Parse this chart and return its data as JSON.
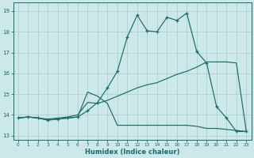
{
  "xlabel": "Humidex (Indice chaleur)",
  "background_color": "#cce8e8",
  "grid_color": "#aacccc",
  "line_color": "#1a6b6b",
  "xlim": [
    -0.5,
    23.5
  ],
  "ylim": [
    12.8,
    19.4
  ],
  "yticks": [
    13,
    14,
    15,
    16,
    17,
    18,
    19
  ],
  "xticks": [
    0,
    1,
    2,
    3,
    4,
    5,
    6,
    7,
    8,
    9,
    10,
    11,
    12,
    13,
    14,
    15,
    16,
    17,
    18,
    19,
    20,
    21,
    22,
    23
  ],
  "series_main": {
    "x": [
      0,
      1,
      2,
      3,
      4,
      5,
      6,
      7,
      8,
      9,
      10,
      11,
      12,
      13,
      14,
      15,
      16,
      17,
      18,
      19,
      20,
      21,
      22,
      23
    ],
    "y": [
      13.85,
      13.9,
      13.85,
      13.75,
      13.8,
      13.85,
      13.9,
      14.2,
      14.6,
      15.3,
      16.1,
      17.75,
      18.8,
      18.05,
      18.0,
      18.7,
      18.55,
      18.9,
      17.05,
      16.5,
      14.4,
      13.85,
      13.2,
      13.2
    ]
  },
  "series_upper": {
    "x": [
      0,
      1,
      2,
      3,
      4,
      5,
      6,
      7,
      8,
      9,
      10,
      11,
      12,
      13,
      14,
      15,
      16,
      17,
      18,
      19,
      20,
      21,
      22,
      23
    ],
    "y": [
      13.85,
      13.9,
      13.85,
      13.8,
      13.85,
      13.9,
      14.0,
      14.6,
      14.55,
      14.7,
      14.9,
      15.1,
      15.3,
      15.45,
      15.55,
      15.75,
      15.95,
      16.1,
      16.3,
      16.55,
      16.55,
      16.55,
      16.5,
      13.2
    ]
  },
  "series_lower": {
    "x": [
      0,
      1,
      2,
      3,
      4,
      5,
      6,
      7,
      8,
      9,
      10,
      11,
      12,
      13,
      14,
      15,
      16,
      17,
      18,
      19,
      20,
      21,
      22,
      23
    ],
    "y": [
      13.85,
      13.9,
      13.85,
      13.75,
      13.8,
      13.85,
      13.9,
      15.1,
      14.9,
      14.55,
      13.5,
      13.5,
      13.5,
      13.5,
      13.5,
      13.5,
      13.5,
      13.5,
      13.45,
      13.35,
      13.35,
      13.3,
      13.25,
      13.2
    ]
  }
}
